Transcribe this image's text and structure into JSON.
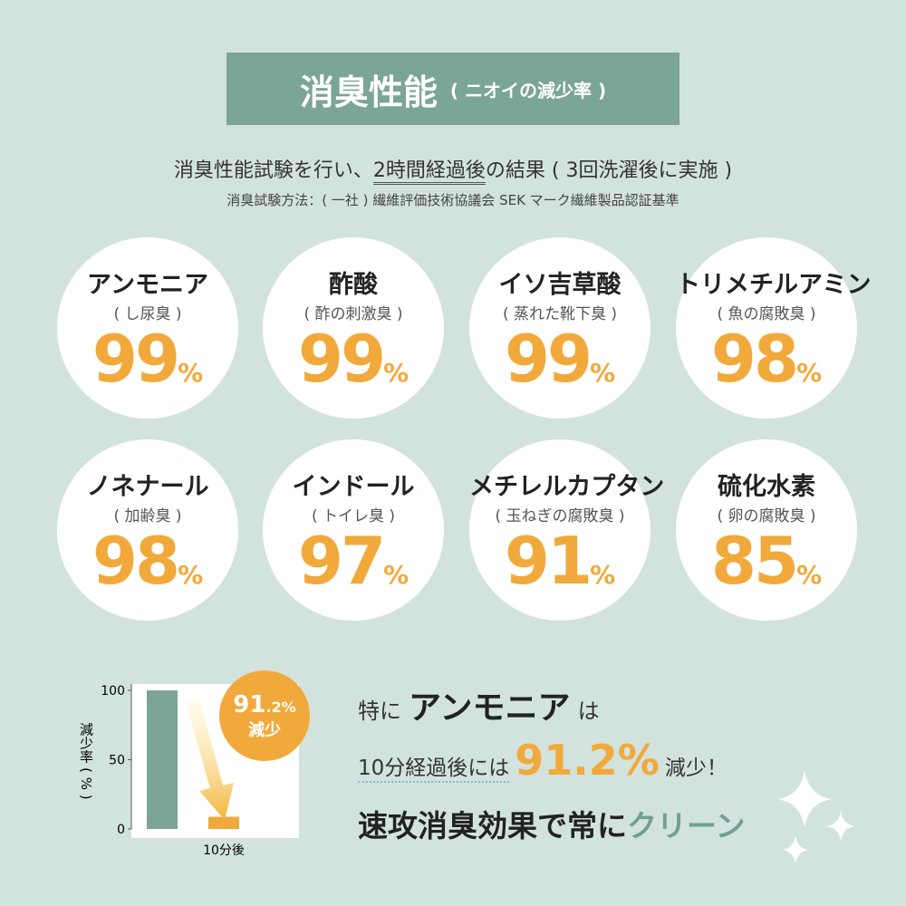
{
  "header": {
    "title": "消臭性能",
    "subtitle": "( ニオイの減少率 )"
  },
  "intro": {
    "before": "消臭性能試験を行い、",
    "highlight": "2時間経過後",
    "after": "の結果 ( 3回洗濯後に実施 )",
    "method": "消臭試験方法：( 一社 ) 繊維評価技術協議会 SEK マーク繊維製品認証基準"
  },
  "results": [
    {
      "name": "アンモニア",
      "note": "( し尿臭 )",
      "value": 99,
      "unit": "%"
    },
    {
      "name": "酢酸",
      "note": "( 酢の刺激臭 )",
      "value": 99,
      "unit": "%"
    },
    {
      "name": "イソ吉草酸",
      "note": "( 蒸れた靴下臭 )",
      "value": 99,
      "unit": "%"
    },
    {
      "name": "トリメチルアミン",
      "note": "( 魚の腐敗臭 )",
      "value": 98,
      "unit": "%"
    },
    {
      "name": "ノネナール",
      "note": "( 加齢臭 )",
      "value": 98,
      "unit": "%"
    },
    {
      "name": "インドール",
      "note": "( トイレ臭 )",
      "value": 97,
      "unit": "%"
    },
    {
      "name": "メチレルカプタン",
      "note": "( 玉ねぎの腐敗臭 )",
      "value": 91,
      "unit": "%"
    },
    {
      "name": "硫化水素",
      "note": "( 卵の腐敗臭 )",
      "value": 85,
      "unit": "%"
    }
  ],
  "chart": {
    "y_label": "減少率 ( % )",
    "ylim": [
      0,
      100
    ],
    "yticks": [
      0,
      50,
      100
    ],
    "categories": [
      null,
      "10分後"
    ],
    "values": [
      100,
      8.8
    ],
    "colors": [
      "#7aa597",
      "#f2a93b"
    ],
    "badge": {
      "main": "91",
      "small": ".2%",
      "caption": "減少"
    }
  },
  "callout": {
    "line1": [
      "特に",
      "アンモニア",
      "は"
    ],
    "line2": [
      "10分経過後には",
      "91.2%",
      "減少！"
    ],
    "line3": [
      "速攻消臭効果で常に",
      "クリーン"
    ]
  }
}
